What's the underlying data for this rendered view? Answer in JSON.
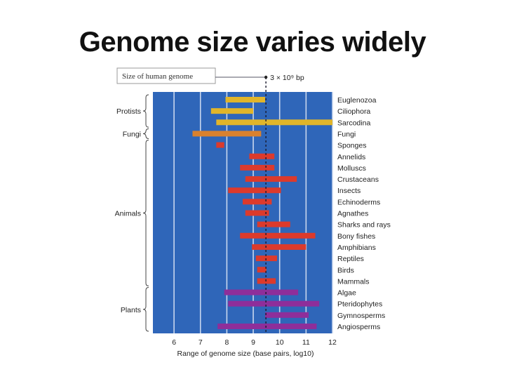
{
  "slide": {
    "title": "Genome size varies widely"
  },
  "chart_data": {
    "type": "bar",
    "orientation": "horizontal-range",
    "title": "",
    "xlabel": "Range of genome size (base pairs, log10)",
    "xlim": [
      5.2,
      12
    ],
    "xticks": [
      "6",
      "7",
      "8",
      "9",
      "10",
      "11",
      "12"
    ],
    "grid": true,
    "reference_line": {
      "value": 9.48,
      "box_label": "Size of human genome",
      "value_label": "3 × 10⁹ bp"
    },
    "categories": [
      {
        "name": "Euglenozoa",
        "group": "Protists",
        "min": 7.95,
        "max": 9.45,
        "color": "#e1b52a"
      },
      {
        "name": "Ciliophora",
        "group": "Protists",
        "min": 7.4,
        "max": 9.0,
        "color": "#e1b52a"
      },
      {
        "name": "Sarcodina",
        "group": "Protists",
        "min": 7.6,
        "max": 12.0,
        "color": "#e1b52a"
      },
      {
        "name": "Fungi",
        "group": "Fungi",
        "min": 6.7,
        "max": 9.3,
        "color": "#d9812e"
      },
      {
        "name": "Sponges",
        "group": "Animals",
        "min": 7.6,
        "max": 7.9,
        "color": "#dc3a2c"
      },
      {
        "name": "Annelids",
        "group": "Animals",
        "min": 8.85,
        "max": 9.8,
        "color": "#dc3a2c"
      },
      {
        "name": "Molluscs",
        "group": "Animals",
        "min": 8.5,
        "max": 9.8,
        "color": "#dc3a2c"
      },
      {
        "name": "Crustaceans",
        "group": "Animals",
        "min": 8.7,
        "max": 10.65,
        "color": "#dc3a2c"
      },
      {
        "name": "Insects",
        "group": "Animals",
        "min": 8.05,
        "max": 10.05,
        "color": "#dc3a2c"
      },
      {
        "name": "Echinoderms",
        "group": "Animals",
        "min": 8.6,
        "max": 9.7,
        "color": "#dc3a2c"
      },
      {
        "name": "Agnathes",
        "group": "Animals",
        "min": 8.7,
        "max": 9.6,
        "color": "#dc3a2c"
      },
      {
        "name": "Sharks and rays",
        "group": "Animals",
        "min": 9.15,
        "max": 10.4,
        "color": "#dc3a2c"
      },
      {
        "name": "Bony fishes",
        "group": "Animals",
        "min": 8.5,
        "max": 11.35,
        "color": "#dc3a2c"
      },
      {
        "name": "Amphibians",
        "group": "Animals",
        "min": 8.95,
        "max": 11.0,
        "color": "#dc3a2c"
      },
      {
        "name": "Reptiles",
        "group": "Animals",
        "min": 9.1,
        "max": 9.9,
        "color": "#dc3a2c"
      },
      {
        "name": "Birds",
        "group": "Animals",
        "min": 9.15,
        "max": 9.5,
        "color": "#dc3a2c"
      },
      {
        "name": "Mammals",
        "group": "Animals",
        "min": 9.15,
        "max": 9.85,
        "color": "#dc3a2c"
      },
      {
        "name": "Algae",
        "group": "Plants",
        "min": 7.9,
        "max": 10.7,
        "color": "#8e2e9a"
      },
      {
        "name": "Pteridophytes",
        "group": "Plants",
        "min": 8.05,
        "max": 11.5,
        "color": "#8e2e9a"
      },
      {
        "name": "Gymnosperms",
        "group": "Plants",
        "min": 9.45,
        "max": 11.1,
        "color": "#8e2e9a"
      },
      {
        "name": "Angiosperms",
        "group": "Plants",
        "min": 7.65,
        "max": 11.4,
        "color": "#8e2e9a"
      }
    ],
    "groups": [
      {
        "name": "Protists",
        "from": "Euglenozoa",
        "to": "Sarcodina"
      },
      {
        "name": "Fungi",
        "from": "Fungi",
        "to": "Fungi"
      },
      {
        "name": "Animals",
        "from": "Sponges",
        "to": "Mammals"
      },
      {
        "name": "Plants",
        "from": "Algae",
        "to": "Angiosperms"
      }
    ],
    "colors": {
      "plot_background": "#2f66b9",
      "gridline": "#c9d7ee",
      "reference_line": "#1a1a2e"
    }
  }
}
